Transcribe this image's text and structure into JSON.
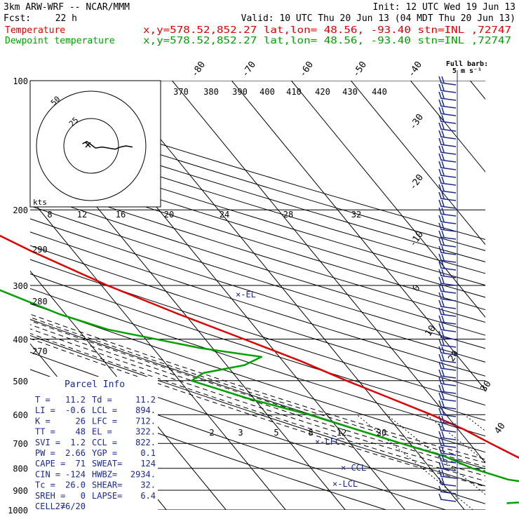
{
  "header": {
    "model": "3km ARW-WRF -- NCAR/MMM",
    "init": "Init: 12 UTC Wed 19 Jun 13",
    "fcst_label": "Fcst:",
    "fcst_value": "22 h",
    "valid": "Valid: 10 UTC Thu 20 Jun 13 (04 MDT Thu 20 Jun 13)",
    "temp_label": "Temperature",
    "dew_label": "Dewpoint temperature",
    "temp_loc": "x,y=578.52,852.27   lat,lon= 48.56, -93.40   stn=INL ,72747",
    "dew_loc": "x,y=578.52,852.27   lat,lon= 48.56, -93.40   stn=INL ,72747"
  },
  "colors": {
    "temperature": "#e00000",
    "dewpoint": "#00a000",
    "annotation": "#1c2a8c",
    "grid": "#000000"
  },
  "chart_data": {
    "type": "line",
    "title": "Skew-T log-P sounding",
    "pressure_levels": [
      "100",
      "200",
      "300",
      "400",
      "500",
      "600",
      "700",
      "800",
      "900",
      "1000"
    ],
    "isotherm_labels": [
      "-80",
      "-70",
      "-60",
      "-50",
      "-40",
      "-30",
      "-20",
      "-10",
      "0",
      "10",
      "20",
      "30",
      "40"
    ],
    "theta_labels": [
      "370",
      "380",
      "390",
      "400",
      "410",
      "420",
      "430",
      "440"
    ],
    "theta_left_labels": [
      "290",
      "280",
      "270"
    ],
    "mixing_ratio_labels": [
      "8",
      "12",
      "16",
      "20",
      "24",
      "28",
      "32"
    ],
    "low_mixing_labels": [
      "2",
      "3",
      "5",
      "8",
      "12",
      "20"
    ],
    "series": [
      {
        "name": "Temperature",
        "values": [
          {
            "p": 100,
            "t": -59
          },
          {
            "p": 115,
            "t": -60.5
          },
          {
            "p": 130,
            "t": -62
          },
          {
            "p": 150,
            "t": -60
          },
          {
            "p": 170,
            "t": -58
          },
          {
            "p": 185,
            "t": -57
          },
          {
            "p": 200,
            "t": -55.5
          },
          {
            "p": 250,
            "t": -47
          },
          {
            "p": 300,
            "t": -39
          },
          {
            "p": 350,
            "t": -31
          },
          {
            "p": 400,
            "t": -23.5
          },
          {
            "p": 450,
            "t": -17
          },
          {
            "p": 500,
            "t": -12
          },
          {
            "p": 550,
            "t": -7
          },
          {
            "p": 600,
            "t": -2.5
          },
          {
            "p": 650,
            "t": 1
          },
          {
            "p": 700,
            "t": 3.5
          },
          {
            "p": 750,
            "t": 6
          },
          {
            "p": 800,
            "t": 8.5
          },
          {
            "p": 850,
            "t": 10
          },
          {
            "p": 900,
            "t": 9
          },
          {
            "p": 925,
            "t": 10
          },
          {
            "p": 950,
            "t": 13
          },
          {
            "p": 965,
            "t": 11
          }
        ]
      },
      {
        "name": "Dewpoint temperature",
        "values": [
          {
            "p": 100,
            "t": -92
          },
          {
            "p": 130,
            "t": -104
          },
          {
            "p": 160,
            "t": -90
          },
          {
            "p": 185,
            "t": -77
          },
          {
            "p": 200,
            "t": -72
          },
          {
            "p": 220,
            "t": -71.5
          },
          {
            "p": 250,
            "t": -66
          },
          {
            "p": 300,
            "t": -59
          },
          {
            "p": 350,
            "t": -51
          },
          {
            "p": 380,
            "t": -45
          },
          {
            "p": 420,
            "t": -32
          },
          {
            "p": 440,
            "t": -23
          },
          {
            "p": 460,
            "t": -27
          },
          {
            "p": 480,
            "t": -35
          },
          {
            "p": 500,
            "t": -38
          },
          {
            "p": 550,
            "t": -31
          },
          {
            "p": 600,
            "t": -23
          },
          {
            "p": 650,
            "t": -17
          },
          {
            "p": 700,
            "t": -11.5
          },
          {
            "p": 750,
            "t": -6
          },
          {
            "p": 800,
            "t": -3
          },
          {
            "p": 850,
            "t": 1.5
          },
          {
            "p": 880,
            "t": 8
          },
          {
            "p": 900,
            "t": 9.5
          },
          {
            "p": 920,
            "t": 9
          },
          {
            "p": 950,
            "t": 6
          },
          {
            "p": 965,
            "t": -2
          }
        ]
      }
    ],
    "levels": [
      {
        "label": "-EL"
      },
      {
        "label": "-LFC"
      },
      {
        "label": "-CCL"
      },
      {
        "label": "-LCL"
      }
    ]
  },
  "hodograph": {
    "unit_label": "kts",
    "ring_labels": [
      "50",
      "25"
    ],
    "path": [
      {
        "u": -8,
        "v": 2
      },
      {
        "u": -4,
        "v": 4
      },
      {
        "u": 0,
        "v": 1
      },
      {
        "u": 4,
        "v": -2
      },
      {
        "u": 10,
        "v": -1
      },
      {
        "u": 16,
        "v": -2
      },
      {
        "u": 22,
        "v": -3
      },
      {
        "u": 27,
        "v": -1
      },
      {
        "u": 32,
        "v": 0
      },
      {
        "u": 38,
        "v": -1
      }
    ]
  },
  "wind": {
    "title": "Full barb:",
    "unit": "5 m s⁻¹"
  },
  "parcel": {
    "title": "Parcel Info",
    "rows": [
      [
        "T  =",
        "11.2",
        "Td =",
        "11.2"
      ],
      [
        "LI =",
        "-0.6",
        "LCL =",
        "894."
      ],
      [
        "K  =",
        "26",
        "LFC =",
        "712."
      ],
      [
        "TT =",
        "48",
        "EL  =",
        "322."
      ],
      [
        "SVI =",
        "1.2",
        "CCL =",
        "822."
      ],
      [
        "PW =",
        "2.66",
        "YGP =",
        "0.1"
      ],
      [
        "CAPE =",
        "71",
        "SWEAT=",
        "124"
      ],
      [
        "CIN =",
        "-124",
        "HWBZ=",
        "2934."
      ],
      [
        "Tc =",
        "26.0",
        "SHEAR=",
        "32."
      ],
      [
        "SREH =",
        "0",
        "LAPSE=",
        "6.4"
      ],
      [
        "CELL =",
        "276/20",
        "",
        ""
      ]
    ]
  }
}
